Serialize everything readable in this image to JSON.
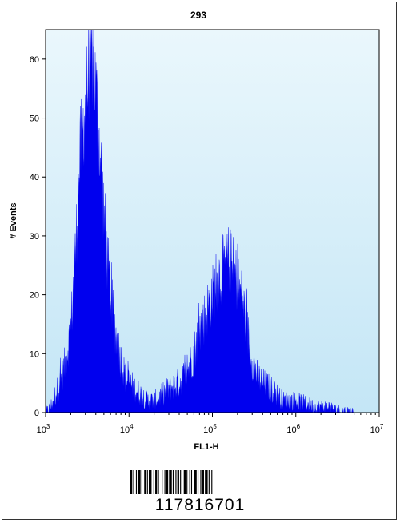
{
  "chart_data": {
    "type": "area",
    "title": "293",
    "xlabel": "FL1-H",
    "ylabel": "# Events",
    "x_scale": "log",
    "xlim": [
      1000,
      10000000
    ],
    "ylim": [
      0,
      65
    ],
    "x_ticks": [
      {
        "value": 1000,
        "base": "10",
        "exp": "3"
      },
      {
        "value": 10000,
        "base": "10",
        "exp": "4"
      },
      {
        "value": 100000,
        "base": "10",
        "exp": "5"
      },
      {
        "value": 1000000,
        "base": "10",
        "exp": "6"
      },
      {
        "value": 10000000,
        "base": "10",
        "exp": "7"
      }
    ],
    "y_ticks": [
      0,
      10,
      20,
      30,
      40,
      50,
      60
    ],
    "grid": false,
    "colors": {
      "fill": "#0000ee",
      "plot_bg_top": "#eaf7fc",
      "plot_bg_bottom": "#c4e6f6"
    },
    "series": [
      {
        "x": [
          1000,
          1150,
          1300,
          1500,
          1700,
          2000,
          2300,
          2600,
          3000,
          3300,
          3600,
          4000,
          4500,
          5000,
          5500,
          6000,
          7000,
          8000,
          9000,
          10000,
          12000,
          14000,
          17000,
          20000,
          25000,
          30000,
          40000,
          50000,
          60000,
          70000,
          80000,
          100000,
          120000,
          140000,
          160000,
          180000,
          200000,
          230000,
          260000,
          300000,
          350000,
          400000,
          500000,
          600000,
          700000,
          800000,
          1000000,
          1300000,
          1700000,
          2000000,
          2500000,
          3000000,
          3500000,
          4000000,
          5000000,
          7000000,
          10000000
        ],
        "values": [
          0,
          1,
          3,
          5,
          8,
          14,
          28,
          44,
          52,
          58,
          60,
          55,
          44,
          34,
          26,
          20,
          13,
          9,
          6,
          5,
          4,
          3,
          2,
          2,
          3,
          4,
          5,
          7,
          10,
          14,
          16,
          20,
          23,
          25,
          26,
          24,
          22,
          19,
          14,
          9,
          6,
          5,
          4,
          3,
          2,
          2,
          2,
          1.5,
          1,
          1,
          1,
          0.5,
          0.3,
          0.2,
          0,
          0,
          0
        ]
      }
    ]
  },
  "barcode": {
    "number": "117816701"
  }
}
